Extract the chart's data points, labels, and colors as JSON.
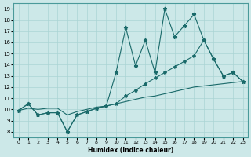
{
  "xlabel": "Humidex (Indice chaleur)",
  "bg_color": "#cce8e8",
  "line_color": "#1a6a6a",
  "xlim": [
    -0.5,
    23.5
  ],
  "ylim": [
    7.5,
    19.5
  ],
  "xticks": [
    0,
    1,
    2,
    3,
    4,
    5,
    6,
    7,
    8,
    9,
    10,
    11,
    12,
    13,
    14,
    15,
    16,
    17,
    18,
    19,
    20,
    21,
    22,
    23
  ],
  "yticks": [
    8,
    9,
    10,
    11,
    12,
    13,
    14,
    15,
    16,
    17,
    18,
    19
  ],
  "zigzag_x": [
    0,
    1,
    2,
    3,
    4,
    5,
    6,
    7,
    8,
    9,
    10,
    11,
    12,
    13,
    14,
    15,
    16,
    17,
    18,
    19,
    20,
    21,
    22,
    23
  ],
  "zigzag_y": [
    9.9,
    10.5,
    9.5,
    9.7,
    9.7,
    8.0,
    9.5,
    9.8,
    10.1,
    10.3,
    13.3,
    17.3,
    13.9,
    16.2,
    13.3,
    19.0,
    16.5,
    17.5,
    18.5,
    16.2,
    14.5,
    13.0,
    13.3,
    12.5
  ],
  "mid_x": [
    0,
    1,
    2,
    3,
    4,
    5,
    6,
    7,
    8,
    9,
    10,
    11,
    12,
    13,
    14,
    15,
    16,
    17,
    18,
    19,
    20,
    21,
    22,
    23
  ],
  "mid_y": [
    9.9,
    10.5,
    9.5,
    9.7,
    9.7,
    8.0,
    9.5,
    9.8,
    10.1,
    10.3,
    10.5,
    11.2,
    11.7,
    12.3,
    12.8,
    13.3,
    13.8,
    14.3,
    14.8,
    16.2,
    14.5,
    13.0,
    13.3,
    12.5
  ],
  "bot_x": [
    0,
    1,
    2,
    3,
    4,
    5,
    6,
    7,
    8,
    9,
    10,
    11,
    12,
    13,
    14,
    15,
    16,
    17,
    18,
    19,
    20,
    21,
    22,
    23
  ],
  "bot_y": [
    9.9,
    10.1,
    10.0,
    10.1,
    10.1,
    9.5,
    9.8,
    10.0,
    10.2,
    10.3,
    10.5,
    10.7,
    10.9,
    11.1,
    11.2,
    11.4,
    11.6,
    11.8,
    12.0,
    12.1,
    12.2,
    12.3,
    12.4,
    12.5
  ]
}
